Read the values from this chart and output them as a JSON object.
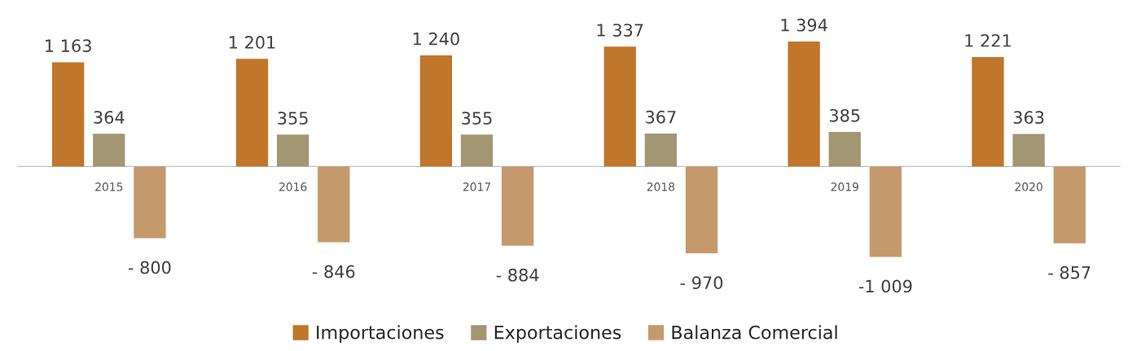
{
  "chart_data": {
    "type": "bar",
    "categories": [
      "2015",
      "2016",
      "2017",
      "2018",
      "2019",
      "2020"
    ],
    "series": [
      {
        "name": "Importaciones",
        "color": "#c0762b",
        "values": [
          1163,
          1201,
          1240,
          1337,
          1394,
          1221
        ],
        "value_labels": [
          "1 163",
          "1 201",
          "1 240",
          "1 337",
          "1 394",
          "1 221"
        ]
      },
      {
        "name": "Exportaciones",
        "color": "#a39673",
        "values": [
          364,
          355,
          355,
          367,
          385,
          363
        ],
        "value_labels": [
          "364",
          "355",
          "355",
          "367",
          "385",
          "363"
        ]
      },
      {
        "name": "Balanza Comercial",
        "color": "#c49a6c",
        "values": [
          -800,
          -846,
          -884,
          -970,
          -1009,
          -857
        ],
        "value_labels": [
          "- 800",
          "- 846",
          "- 884",
          "- 970",
          "-1 009",
          "- 857"
        ]
      }
    ],
    "tick_labels": "x",
    "legend": "bottom"
  }
}
